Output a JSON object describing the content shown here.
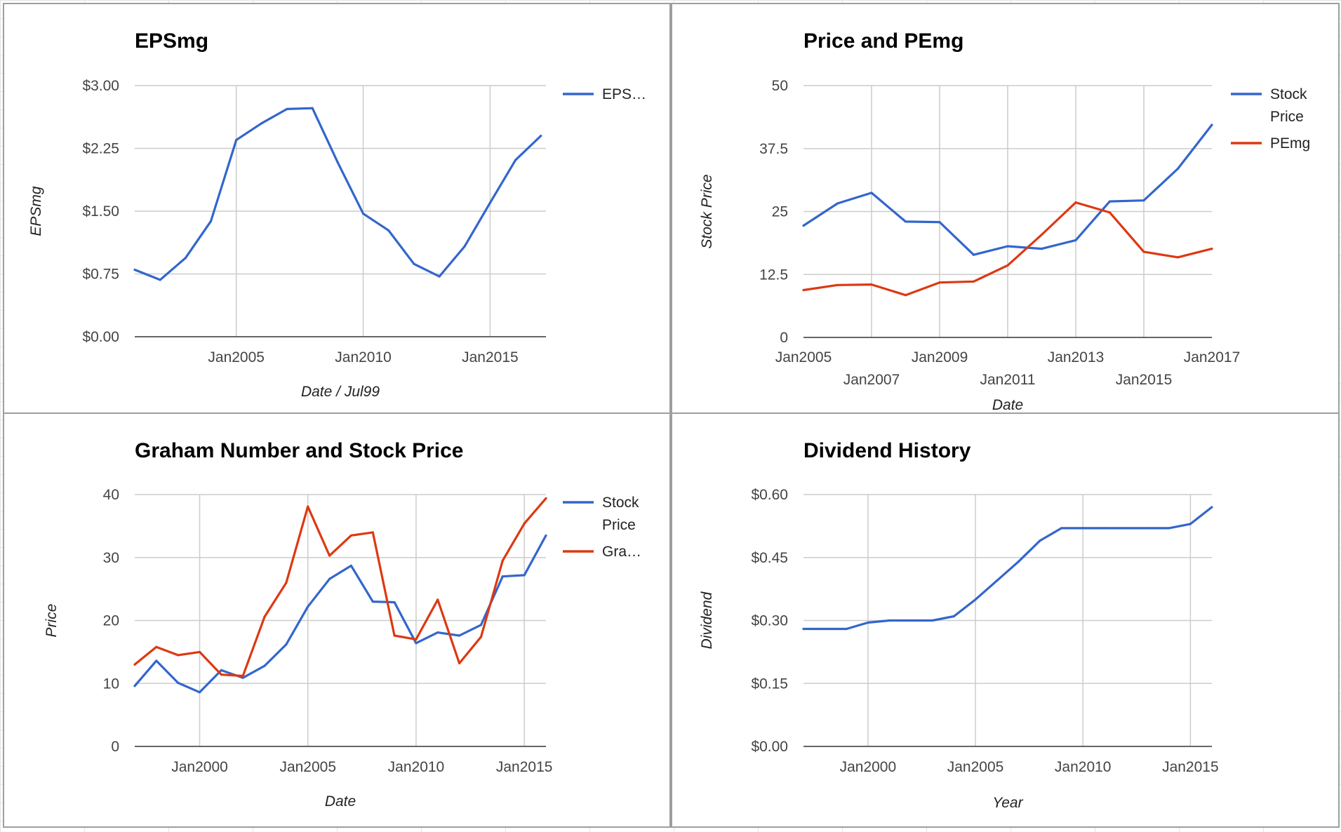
{
  "colors": {
    "blue": "#3366cc",
    "red": "#dc3912"
  },
  "chart_data": [
    {
      "type": "line",
      "title": "EPSmg",
      "xlabel": "Date / Jul99",
      "ylabel": "EPSmg",
      "x_ticks": [
        "Jan2005",
        "Jan2010",
        "Jan2015"
      ],
      "y_ticks": [
        "$0.00",
        "$0.75",
        "$1.50",
        "$2.25",
        "$3.00"
      ],
      "xlim": [
        2001.0,
        2017.2
      ],
      "ylim": [
        0,
        3
      ],
      "legend_position": "right",
      "series": [
        {
          "name": "EPS…",
          "color": "#3366cc",
          "x": [
            2001.0,
            2002.0,
            2003.0,
            2004.0,
            2005.0,
            2006.0,
            2007.0,
            2008.0,
            2009.0,
            2010.0,
            2011.0,
            2012.0,
            2013.0,
            2014.0,
            2015.0,
            2016.0,
            2017.0
          ],
          "y": [
            0.8,
            0.68,
            0.94,
            1.38,
            2.35,
            2.55,
            2.72,
            2.73,
            2.08,
            1.47,
            1.27,
            0.87,
            0.72,
            1.08,
            1.6,
            2.11,
            2.4
          ]
        }
      ]
    },
    {
      "type": "line",
      "title": "Price and PEmg",
      "xlabel": "Date",
      "ylabel": "Stock Price",
      "x_ticks": [
        "Jan2005",
        "Jan2007",
        "Jan2009",
        "Jan2011",
        "Jan2013",
        "Jan2015",
        "Jan2017"
      ],
      "y_ticks": [
        "0",
        "12.5",
        "25",
        "37.5",
        "50"
      ],
      "xlim": [
        2005.0,
        2017.0
      ],
      "ylim": [
        0,
        50
      ],
      "legend_position": "right",
      "series": [
        {
          "name": "Stock Price",
          "color": "#3366cc",
          "x": [
            2005.0,
            2006.0,
            2007.0,
            2008.0,
            2009.0,
            2010.0,
            2011.0,
            2012.0,
            2013.0,
            2014.0,
            2015.0,
            2016.0,
            2017.0
          ],
          "y": [
            22.2,
            26.6,
            28.7,
            23.0,
            22.9,
            16.4,
            18.1,
            17.6,
            19.3,
            27.0,
            27.2,
            33.5,
            42.2
          ]
        },
        {
          "name": "PEmg",
          "color": "#dc3912",
          "x": [
            2005.0,
            2006.0,
            2007.0,
            2008.0,
            2009.0,
            2010.0,
            2011.0,
            2012.0,
            2013.0,
            2014.0,
            2015.0,
            2016.0,
            2017.0
          ],
          "y": [
            9.4,
            10.4,
            10.5,
            8.4,
            10.9,
            11.1,
            14.3,
            20.4,
            26.8,
            24.8,
            17.0,
            15.9,
            17.6
          ]
        }
      ]
    },
    {
      "type": "line",
      "title": "Graham Number and Stock Price",
      "xlabel": "Date",
      "ylabel": "Price",
      "x_ticks": [
        "Jan2000",
        "Jan2005",
        "Jan2010",
        "Jan2015"
      ],
      "y_ticks": [
        "0",
        "10",
        "20",
        "30",
        "40"
      ],
      "xlim": [
        1997.0,
        2016.0
      ],
      "ylim": [
        0,
        40
      ],
      "legend_position": "right",
      "series": [
        {
          "name": "Stock Price",
          "color": "#3366cc",
          "x": [
            1997.0,
            1998.0,
            1999.0,
            2000.0,
            2001.0,
            2002.0,
            2003.0,
            2004.0,
            2005.0,
            2006.0,
            2007.0,
            2008.0,
            2009.0,
            2010.0,
            2011.0,
            2012.0,
            2013.0,
            2014.0,
            2015.0,
            2016.0
          ],
          "y": [
            9.6,
            13.6,
            10.1,
            8.6,
            12.1,
            10.9,
            12.8,
            16.2,
            22.2,
            26.6,
            28.7,
            23.0,
            22.9,
            16.4,
            18.1,
            17.6,
            19.3,
            27.0,
            27.2,
            33.5
          ]
        },
        {
          "name": "Gra…",
          "color": "#dc3912",
          "x": [
            1997.0,
            1998.0,
            1999.0,
            2000.0,
            2001.0,
            2002.0,
            2003.0,
            2004.0,
            2005.0,
            2006.0,
            2007.0,
            2008.0,
            2009.0,
            2010.0,
            2011.0,
            2012.0,
            2013.0,
            2014.0,
            2015.0,
            2016.0
          ],
          "y": [
            13.0,
            15.8,
            14.5,
            15.0,
            11.4,
            11.2,
            20.6,
            26.0,
            38.1,
            30.3,
            33.5,
            34.0,
            17.6,
            17.0,
            23.3,
            13.2,
            17.4,
            29.5,
            35.4,
            39.4
          ]
        }
      ]
    },
    {
      "type": "line",
      "title": "Dividend History",
      "xlabel": "Year",
      "ylabel": "Dividend",
      "x_ticks": [
        "Jan2000",
        "Jan2005",
        "Jan2010",
        "Jan2015"
      ],
      "y_ticks": [
        "$0.00",
        "$0.15",
        "$0.30",
        "$0.45",
        "$0.60"
      ],
      "xlim": [
        1997.0,
        2016.0
      ],
      "ylim": [
        0,
        0.6
      ],
      "legend_position": "none",
      "series": [
        {
          "color": "#3366cc",
          "x": [
            1997.0,
            1998.0,
            1999.0,
            2000.0,
            2001.0,
            2002.0,
            2003.0,
            2004.0,
            2005.0,
            2006.0,
            2007.0,
            2008.0,
            2009.0,
            2010.0,
            2011.0,
            2012.0,
            2013.0,
            2014.0,
            2015.0,
            2016.0
          ],
          "y": [
            0.28,
            0.28,
            0.28,
            0.295,
            0.3,
            0.3,
            0.3,
            0.31,
            0.35,
            0.395,
            0.44,
            0.49,
            0.52,
            0.52,
            0.52,
            0.52,
            0.52,
            0.52,
            0.53,
            0.57
          ]
        }
      ]
    }
  ]
}
